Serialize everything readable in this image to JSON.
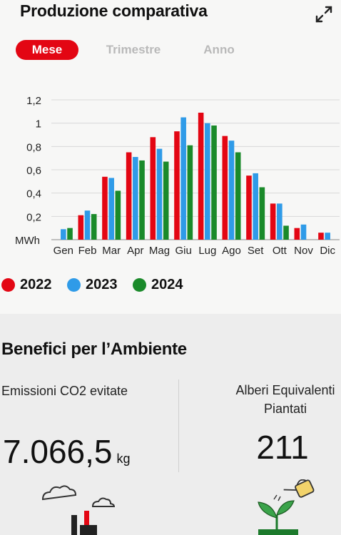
{
  "header": {
    "title": "Produzione comparativa",
    "expand_icon": "expand-icon"
  },
  "tabs": [
    {
      "label": "Mese",
      "active": true
    },
    {
      "label": "Trimestre",
      "active": false
    },
    {
      "label": "Anno",
      "active": false
    }
  ],
  "chart_data": {
    "type": "bar",
    "ylabel": "MWh",
    "ylim": [
      0,
      1.2
    ],
    "yticks": [
      "0,2",
      "0,4",
      "0,6",
      "0,8",
      "1",
      "1,2"
    ],
    "categories": [
      "Gen",
      "Feb",
      "Mar",
      "Apr",
      "Mag",
      "Giu",
      "Lug",
      "Ago",
      "Set",
      "Ott",
      "Nov",
      "Dic"
    ],
    "series": [
      {
        "name": "2022",
        "color": "#e30613",
        "values": [
          0.0,
          0.21,
          0.54,
          0.75,
          0.88,
          0.93,
          1.09,
          0.89,
          0.55,
          0.31,
          0.1,
          0.06
        ]
      },
      {
        "name": "2023",
        "color": "#2f9be8",
        "values": [
          0.09,
          0.25,
          0.53,
          0.71,
          0.78,
          1.05,
          1.0,
          0.85,
          0.57,
          0.31,
          0.13,
          0.06
        ]
      },
      {
        "name": "2024",
        "color": "#1a8a2a",
        "values": [
          0.1,
          0.22,
          0.42,
          0.68,
          0.67,
          0.81,
          0.98,
          0.75,
          0.45,
          0.12,
          0.0,
          0.0
        ]
      }
    ],
    "grid": true,
    "legend": "bottom-left"
  },
  "benefits": {
    "title": "Benefici per l’Ambiente",
    "co2_label": "Emissioni CO2 evitate",
    "co2_value": "7.066,5",
    "co2_unit": "kg",
    "trees_label_line1": "Alberi Equivalenti",
    "trees_label_line2": "Piantati",
    "trees_value": "211",
    "factory_icon": "factory-clouds-icon",
    "plant_icon": "watering-plant-icon"
  }
}
